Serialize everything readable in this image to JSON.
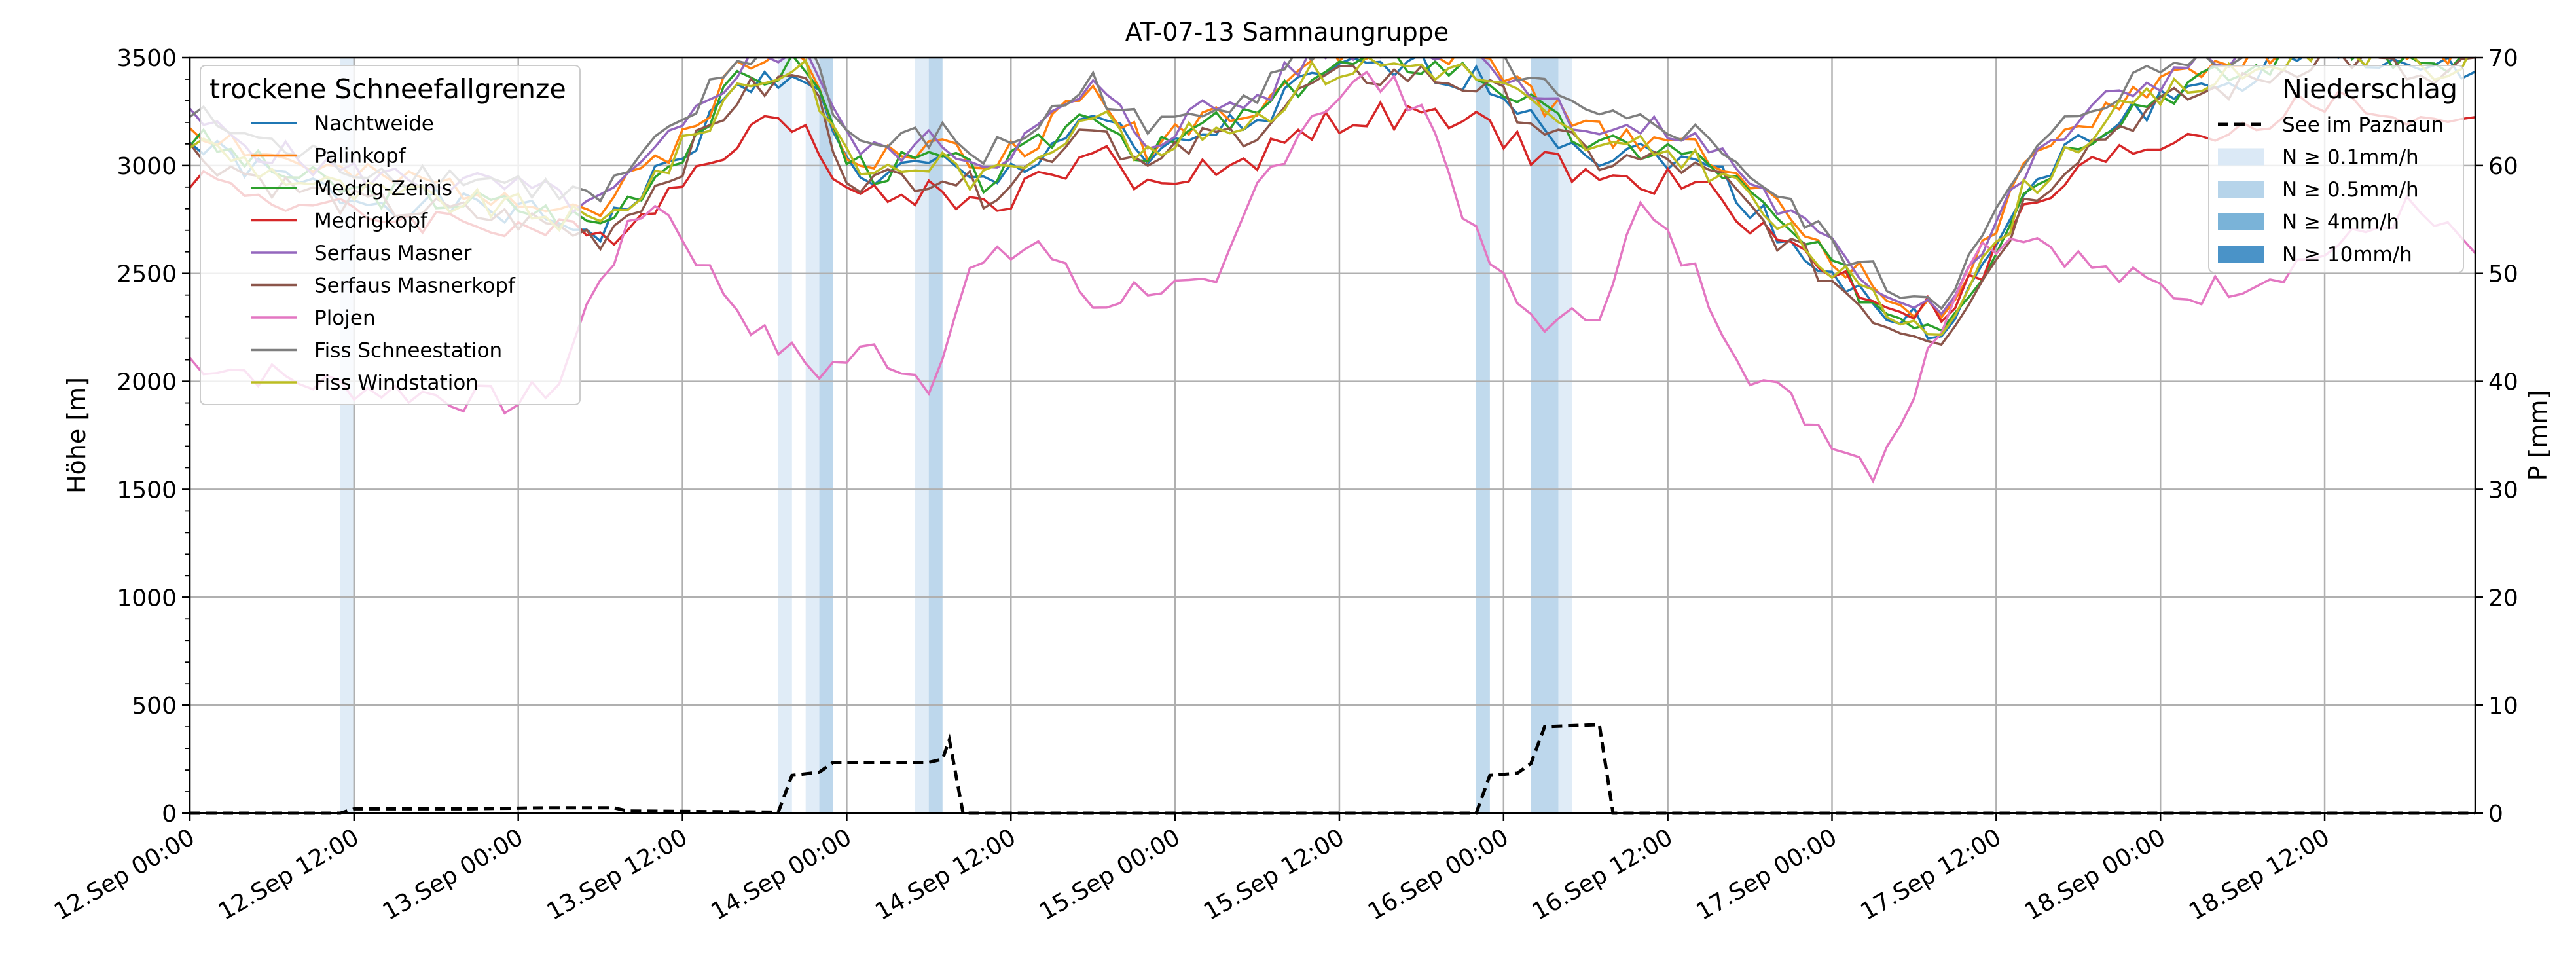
{
  "chart_data": {
    "type": "line",
    "title": "AT-07-13 Samnaungruppe",
    "ylabel": "Höhe [m]",
    "ylabel_right": "P [mm]",
    "ylim": [
      0,
      3500
    ],
    "ylim_right": [
      0,
      70
    ],
    "y_ticks": [
      0,
      500,
      1000,
      1500,
      2000,
      2500,
      3000,
      3500
    ],
    "y_ticks_right": [
      0,
      10,
      20,
      30,
      40,
      50,
      60,
      70
    ],
    "x_range_hours": [
      0,
      167
    ],
    "x_ticks": [
      {
        "hour": 0,
        "label": "12.Sep 00:00"
      },
      {
        "hour": 12,
        "label": "12.Sep 12:00"
      },
      {
        "hour": 24,
        "label": "13.Sep 00:00"
      },
      {
        "hour": 36,
        "label": "13.Sep 12:00"
      },
      {
        "hour": 48,
        "label": "14.Sep 00:00"
      },
      {
        "hour": 60,
        "label": "14.Sep 12:00"
      },
      {
        "hour": 72,
        "label": "15.Sep 00:00"
      },
      {
        "hour": 84,
        "label": "15.Sep 12:00"
      },
      {
        "hour": 96,
        "label": "16.Sep 00:00"
      },
      {
        "hour": 108,
        "label": "16.Sep 12:00"
      },
      {
        "hour": 120,
        "label": "17.Sep 00:00"
      },
      {
        "hour": 132,
        "label": "17.Sep 12:00"
      },
      {
        "hour": 144,
        "label": "18.Sep 00:00"
      },
      {
        "hour": 156,
        "label": "18.Sep 12:00"
      }
    ],
    "grid": true,
    "legend_left": {
      "title": "trockene Schneefallgrenze",
      "position": "top-left"
    },
    "legend_right": {
      "title": "Niederschlag",
      "position": "top-right",
      "items": [
        {
          "label": "See im Paznaun",
          "kind": "dashed-line",
          "color": "#000000"
        },
        {
          "label": "N ≥ 0.1mm/h",
          "kind": "patch",
          "color": "#dbe9f6"
        },
        {
          "label": "N ≥ 0.5mm/h",
          "kind": "patch",
          "color": "#b6d4ea"
        },
        {
          "label": "N ≥ 4mm/h",
          "kind": "patch",
          "color": "#7ab3d8"
        },
        {
          "label": "N ≥ 10mm/h",
          "kind": "patch",
          "color": "#4a93c8"
        }
      ]
    },
    "series": [
      {
        "name": "Nachtweide",
        "color": "#1f77b4",
        "offset": 0,
        "amp": 1.0,
        "seed": 1
      },
      {
        "name": "Palinkopf",
        "color": "#ff7f0e",
        "offset": 90,
        "amp": 1.0,
        "seed": 2
      },
      {
        "name": "Medrig-Zeinis",
        "color": "#2ca02c",
        "offset": 30,
        "amp": 1.0,
        "seed": 3
      },
      {
        "name": "Medrigkopf",
        "color": "#d62728",
        "offset": -90,
        "amp": 0.75,
        "seed": 4
      },
      {
        "name": "Serfaus Masner",
        "color": "#9467bd",
        "offset": 110,
        "amp": 1.0,
        "seed": 5
      },
      {
        "name": "Serfaus Masnerkopf",
        "color": "#8c564b",
        "offset": -30,
        "amp": 1.0,
        "seed": 6
      },
      {
        "name": "Plojen",
        "color": "#e377c2",
        "offset": 0,
        "amp": 1.0,
        "seed": 7
      },
      {
        "name": "Fiss Schneestation",
        "color": "#7f7f7f",
        "offset": 140,
        "amp": 1.0,
        "seed": 8
      },
      {
        "name": "Fiss Windstation",
        "color": "#bcbd22",
        "offset": 20,
        "amp": 1.0,
        "seed": 9
      }
    ],
    "base_profile": [
      [
        0,
        3100
      ],
      [
        6,
        2950
      ],
      [
        12,
        2850
      ],
      [
        18,
        2820
      ],
      [
        24,
        2780
      ],
      [
        30,
        2700
      ],
      [
        36,
        3050
      ],
      [
        40,
        3350
      ],
      [
        45,
        3450
      ],
      [
        48,
        3000
      ],
      [
        50,
        2950
      ],
      [
        55,
        3000
      ],
      [
        58,
        2900
      ],
      [
        62,
        3050
      ],
      [
        66,
        3250
      ],
      [
        70,
        3000
      ],
      [
        74,
        3150
      ],
      [
        78,
        3200
      ],
      [
        82,
        3400
      ],
      [
        86,
        3450
      ],
      [
        90,
        3450
      ],
      [
        94,
        3400
      ],
      [
        97,
        3300
      ],
      [
        100,
        3150
      ],
      [
        103,
        3050
      ],
      [
        108,
        3050
      ],
      [
        112,
        2950
      ],
      [
        116,
        2700
      ],
      [
        120,
        2500
      ],
      [
        124,
        2300
      ],
      [
        128,
        2250
      ],
      [
        131,
        2500
      ],
      [
        134,
        2850
      ],
      [
        138,
        3100
      ],
      [
        142,
        3250
      ],
      [
        146,
        3350
      ],
      [
        150,
        3400
      ],
      [
        156,
        3550
      ],
      [
        160,
        3500
      ],
      [
        164,
        3400
      ],
      [
        167,
        3500
      ]
    ],
    "plojen_profile": [
      [
        0,
        2100
      ],
      [
        8,
        2000
      ],
      [
        16,
        1950
      ],
      [
        24,
        1900
      ],
      [
        27,
        2000
      ],
      [
        30,
        2500
      ],
      [
        34,
        2850
      ],
      [
        38,
        2500
      ],
      [
        42,
        2200
      ],
      [
        46,
        2050
      ],
      [
        50,
        2150
      ],
      [
        54,
        2000
      ],
      [
        57,
        2500
      ],
      [
        62,
        2650
      ],
      [
        66,
        2350
      ],
      [
        70,
        2450
      ],
      [
        75,
        2400
      ],
      [
        78,
        2900
      ],
      [
        82,
        3250
      ],
      [
        86,
        3400
      ],
      [
        90,
        3300
      ],
      [
        94,
        2650
      ],
      [
        97,
        2350
      ],
      [
        100,
        2250
      ],
      [
        103,
        2350
      ],
      [
        106,
        2800
      ],
      [
        110,
        2500
      ],
      [
        114,
        2050
      ],
      [
        120,
        1750
      ],
      [
        123,
        1600
      ],
      [
        126,
        1950
      ],
      [
        130,
        2600
      ],
      [
        134,
        2700
      ],
      [
        140,
        2500
      ],
      [
        146,
        2400
      ],
      [
        152,
        2500
      ],
      [
        158,
        2650
      ],
      [
        162,
        2800
      ],
      [
        167,
        2600
      ]
    ],
    "see_im_paznaun": [
      [
        0,
        0
      ],
      [
        11,
        0
      ],
      [
        12,
        0.4
      ],
      [
        20,
        0.4
      ],
      [
        26,
        0.5
      ],
      [
        31,
        0.5
      ],
      [
        32,
        0.2
      ],
      [
        43,
        0.1
      ],
      [
        44,
        3.5
      ],
      [
        46,
        3.8
      ],
      [
        47,
        4.7
      ],
      [
        54,
        4.7
      ],
      [
        55,
        5.0
      ],
      [
        55.5,
        6.8
      ],
      [
        56.5,
        0
      ],
      [
        94,
        0
      ],
      [
        95,
        3.5
      ],
      [
        97,
        3.7
      ],
      [
        98,
        4.6
      ],
      [
        99,
        8.0
      ],
      [
        103,
        8.2
      ],
      [
        104,
        0
      ],
      [
        167,
        0
      ]
    ],
    "precip_bands": [
      {
        "start": 11,
        "end": 12,
        "level": 1
      },
      {
        "start": 43,
        "end": 44,
        "level": 1
      },
      {
        "start": 45,
        "end": 47,
        "level": 1
      },
      {
        "start": 46,
        "end": 47,
        "level": 2
      },
      {
        "start": 53,
        "end": 55,
        "level": 1
      },
      {
        "start": 54,
        "end": 55,
        "level": 2
      },
      {
        "start": 94,
        "end": 95,
        "level": 2
      },
      {
        "start": 98,
        "end": 101,
        "level": 1
      },
      {
        "start": 98,
        "end": 100,
        "level": 2
      }
    ]
  }
}
